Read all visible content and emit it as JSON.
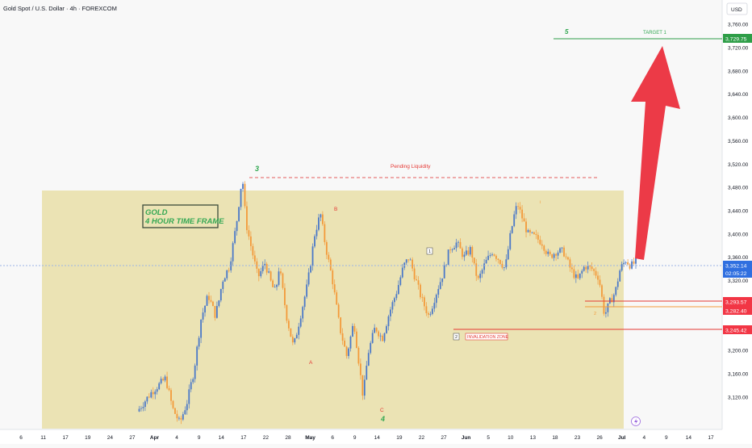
{
  "header": {
    "symbol_title": "Gold Spot / U.S. Dollar · 4h · FOREXCOM",
    "currency_label": "USD"
  },
  "colors": {
    "background": "#f8f8f8",
    "zone_fill": "#ebe3b4",
    "up_candle": "#4a78c8",
    "down_candle": "#f39a3a",
    "wave_green": "#34a853",
    "wave_red": "#e53935",
    "arrow_red": "#ec3a47",
    "current_price_bg": "#2f6fe0",
    "level_red_bg": "#f23645",
    "target_line": "#2e9e48"
  },
  "chart_data": {
    "type": "candlestick",
    "title": "Gold Spot / U.S. Dollar · 4h · FOREXCOM",
    "ylabel": "USD",
    "ylim": [
      3090,
      3775
    ],
    "y_ticks": [
      3120,
      3160,
      3200,
      3240,
      3280,
      3320,
      3360,
      3400,
      3440,
      3480,
      3520,
      3560,
      3600,
      3640,
      3680,
      3720,
      3760
    ],
    "x_ticks": [
      "6",
      "11",
      "17",
      "19",
      "24",
      "27",
      "Apr",
      "4",
      "9",
      "14",
      "17",
      "22",
      "28",
      "May",
      "6",
      "9",
      "14",
      "19",
      "22",
      "27",
      "Jun",
      "5",
      "10",
      "13",
      "18",
      "23",
      "26",
      "Jul",
      "4",
      "9",
      "14",
      "17"
    ],
    "price_path": [
      [
        0,
        3095
      ],
      [
        2,
        3128
      ],
      [
        4,
        3152
      ],
      [
        5,
        3100
      ],
      [
        6,
        3075
      ],
      [
        7,
        3110
      ],
      [
        8,
        3165
      ],
      [
        9,
        3255
      ],
      [
        10,
        3295
      ],
      [
        11,
        3260
      ],
      [
        11.5,
        3285
      ],
      [
        12,
        3320
      ],
      [
        13,
        3345
      ],
      [
        14,
        3420
      ],
      [
        14.8,
        3500
      ],
      [
        15.3,
        3420
      ],
      [
        16,
        3380
      ],
      [
        17,
        3325
      ],
      [
        18,
        3350
      ],
      [
        19,
        3310
      ],
      [
        19.5,
        3300
      ],
      [
        20,
        3345
      ],
      [
        21,
        3260
      ],
      [
        22,
        3205
      ],
      [
        23,
        3260
      ],
      [
        24,
        3315
      ],
      [
        25,
        3400
      ],
      [
        25.8,
        3435
      ],
      [
        26.5,
        3380
      ],
      [
        27.5,
        3320
      ],
      [
        28.5,
        3240
      ],
      [
        29.5,
        3190
      ],
      [
        30.5,
        3250
      ],
      [
        31.8,
        3120
      ],
      [
        32.5,
        3195
      ],
      [
        33.5,
        3240
      ],
      [
        34.5,
        3220
      ],
      [
        35.5,
        3265
      ],
      [
        36.5,
        3300
      ],
      [
        37.5,
        3345
      ],
      [
        38.3,
        3360
      ],
      [
        39,
        3330
      ],
      [
        40,
        3290
      ],
      [
        41,
        3260
      ],
      [
        41.5,
        3275
      ],
      [
        42,
        3295
      ],
      [
        43,
        3330
      ],
      [
        44,
        3375
      ],
      [
        45,
        3385
      ],
      [
        46,
        3360
      ],
      [
        47,
        3375
      ],
      [
        47.5,
        3340
      ],
      [
        48,
        3320
      ],
      [
        49,
        3350
      ],
      [
        50,
        3370
      ],
      [
        51,
        3355
      ],
      [
        51.8,
        3340
      ],
      [
        52.5,
        3395
      ],
      [
        53.2,
        3440
      ],
      [
        53.6,
        3450
      ],
      [
        54,
        3435
      ],
      [
        55,
        3400
      ],
      [
        56,
        3395
      ],
      [
        57,
        3385
      ],
      [
        58,
        3360
      ],
      [
        59,
        3370
      ],
      [
        60,
        3370
      ],
      [
        61,
        3340
      ],
      [
        62,
        3320
      ],
      [
        63,
        3345
      ],
      [
        64,
        3340
      ],
      [
        65,
        3325
      ],
      [
        65.8,
        3260
      ],
      [
        66.5,
        3282
      ],
      [
        67.3,
        3300
      ],
      [
        68,
        3340
      ],
      [
        68.8,
        3355
      ],
      [
        69.5,
        3345
      ],
      [
        70.2,
        3352
      ]
    ],
    "levels": [
      {
        "label": "Pending Liquidity",
        "price": 3500
      },
      {
        "label": "TARGET 1",
        "price": 3729.75
      },
      {
        "label": "INVALIDATION ZONE",
        "price": 3245.42
      }
    ],
    "price_labels": {
      "current": "3,352.14",
      "countdown": "02:05:22",
      "target": "3,729.75",
      "level_1": "3,293.57",
      "level_2": "3,282.40",
      "invalidation": "3,245.42"
    },
    "annotations": {
      "box_line1": "GOLD",
      "box_line2": "4 HOUR TIME FRAME",
      "wave_3": "3",
      "wave_5": "5",
      "wave_A": "A",
      "wave_B": "B",
      "wave_C": "C",
      "wave_4": "4",
      "wave_1": "1",
      "wave_2_box": "2",
      "wave_i": "i",
      "wave_ii": "2",
      "pending_liquidity": "Pending Liquidity",
      "target_1": "TARGET 1",
      "invalidation_zone": "INVALIDATION ZONE"
    },
    "grid": false,
    "legend": "none"
  }
}
